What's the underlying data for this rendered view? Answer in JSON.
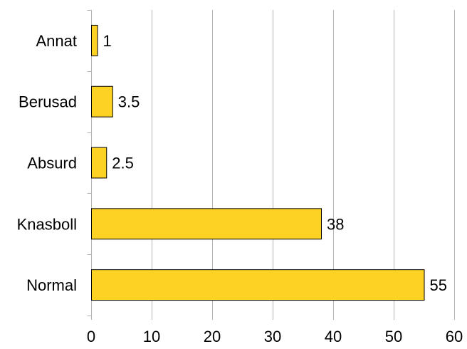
{
  "chart_data": {
    "type": "bar",
    "orientation": "horizontal",
    "categories": [
      "Annat",
      "Berusad",
      "Absurd",
      "Knasboll",
      "Normal"
    ],
    "values": [
      1,
      3.5,
      2.5,
      38,
      55
    ],
    "data_labels": [
      "1",
      "3.5",
      "2.5",
      "38",
      "55"
    ],
    "xlim": [
      0,
      60
    ],
    "x_ticks": [
      0,
      10,
      20,
      30,
      40,
      50,
      60
    ],
    "x_tick_labels": [
      "0",
      "10",
      "20",
      "30",
      "40",
      "50",
      "60"
    ],
    "grid": "vertical",
    "legend": "none",
    "title": "",
    "xlabel": "",
    "ylabel": "",
    "colors": {
      "bar_fill": "#FDD223",
      "bar_stroke": "#000000",
      "grid": "#B3B3B3",
      "axis": "#B3B3B3",
      "text": "#000000"
    }
  }
}
